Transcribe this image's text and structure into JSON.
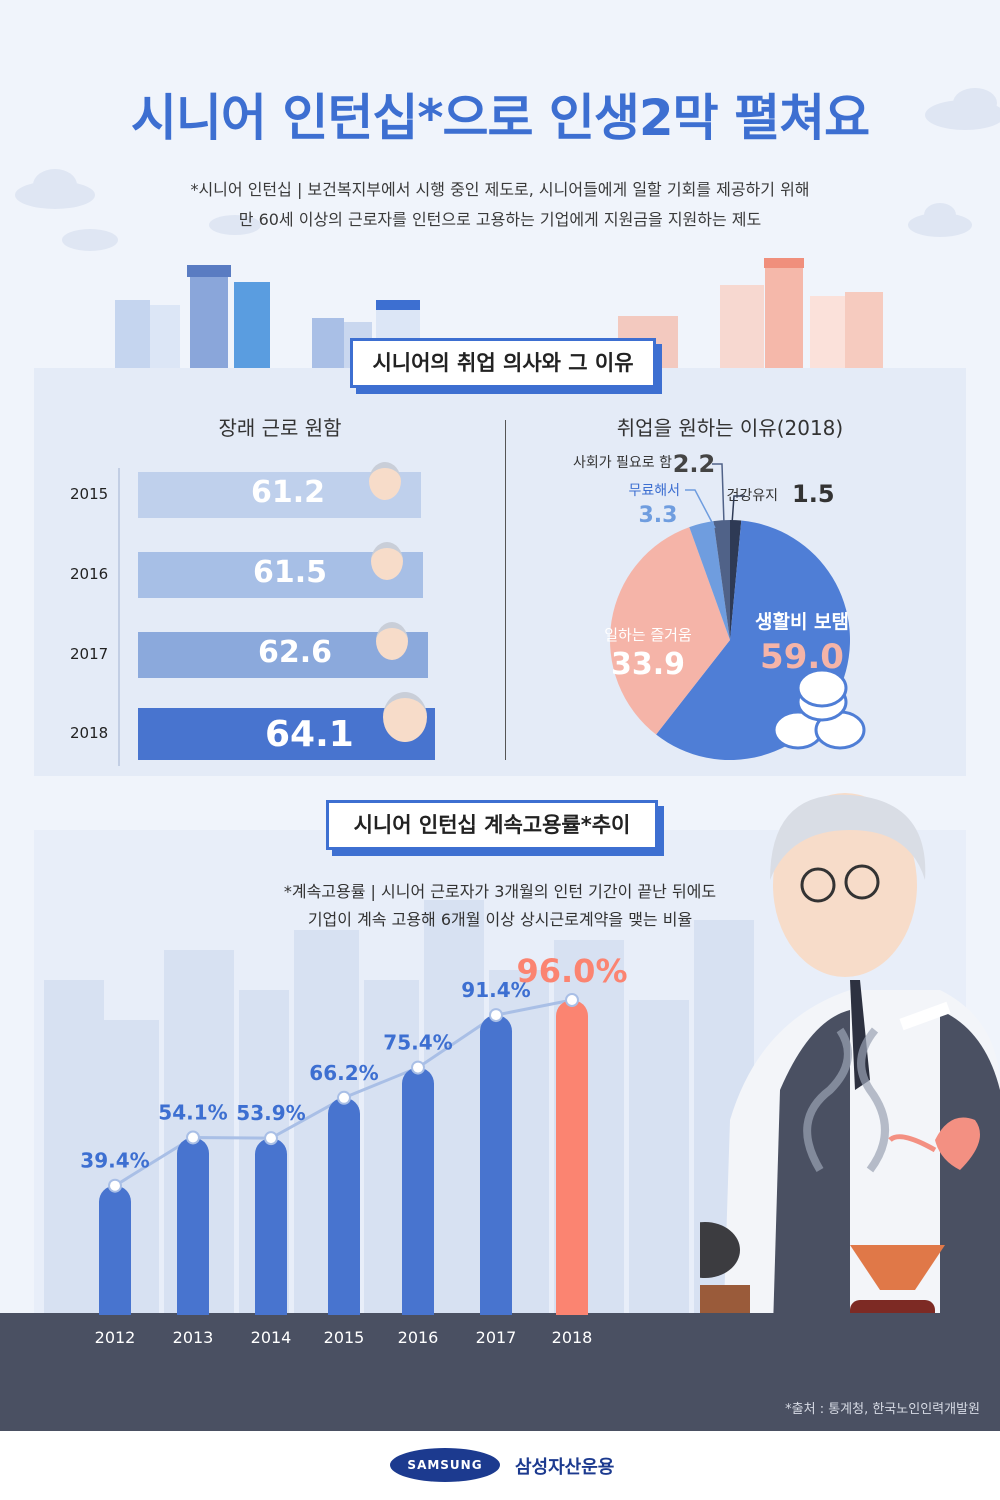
{
  "title": "시니어 인턴십*으로 인생2막 펼쳐요",
  "intro": {
    "line1": "*시니어 인턴십 | 보건복지부에서 시행 중인 제도로, 시니어들에게 일할 기회를 제공하기 위해",
    "line2": "만 60세 이상의 근로자를 인턴으로 고용하는 기업에게 지원금을 지원하는 제도"
  },
  "section1": {
    "title": "시니어의 취업 의사와 그 이유",
    "bar_title": "장래 근로 원함",
    "pie_title": "취업을 원하는 이유(2018)"
  },
  "section2": {
    "title": "시니어 인턴십 계속고용률*추이",
    "note1": "*계속고용률 | 시니어 근로자가 3개월의 인턴 기간이 끝난 뒤에도",
    "note2": "기업이 계속 고용해 6개월 이상 상시근로계약을 맺는 비율"
  },
  "source": "*출처 : 통계청, 한국노인인력개발원",
  "footer": {
    "brand": "SAMSUNG",
    "company": "삼성자산운용"
  },
  "colors": {
    "accent": "#3d6fd1",
    "pink": "#f5b4a8",
    "highlight": "#fb8471",
    "dark": "#4a5062"
  },
  "chart_data": [
    {
      "type": "bar",
      "title": "장래 근로 원함",
      "categories": [
        "2015",
        "2016",
        "2017",
        "2018"
      ],
      "values": [
        61.2,
        61.5,
        62.6,
        64.1
      ],
      "value_labels": [
        "61.2",
        "61.5",
        "62.6",
        "64.1"
      ]
    },
    {
      "type": "pie",
      "title": "취업을 원하는 이유(2018)",
      "slices": [
        {
          "label": "생활비 보탬",
          "value": 59.0,
          "value_label": "59.0",
          "color": "#4f7ed6"
        },
        {
          "label": "일하는 즐거움",
          "value": 33.9,
          "value_label": "33.9",
          "color": "#f5b4a8"
        },
        {
          "label": "무료해서",
          "value": 3.3,
          "value_label": "3.3",
          "color": "#6f9ddf"
        },
        {
          "label": "사회가 필요로 함",
          "value": 2.2,
          "value_label": "2.2",
          "color": "#506288"
        },
        {
          "label": "건강유지",
          "value": 1.5,
          "value_label": "1.5",
          "color": "#2e3a55"
        }
      ]
    },
    {
      "type": "bar",
      "title": "시니어 인턴십 계속고용률*추이",
      "categories": [
        "2012",
        "2013",
        "2014",
        "2015",
        "2016",
        "2017",
        "2018"
      ],
      "values": [
        39.4,
        54.1,
        53.9,
        66.2,
        75.4,
        91.4,
        96.0
      ],
      "value_labels": [
        "39.4%",
        "54.1%",
        "53.9%",
        "66.2%",
        "75.4%",
        "91.4%",
        "96.0%"
      ]
    }
  ]
}
